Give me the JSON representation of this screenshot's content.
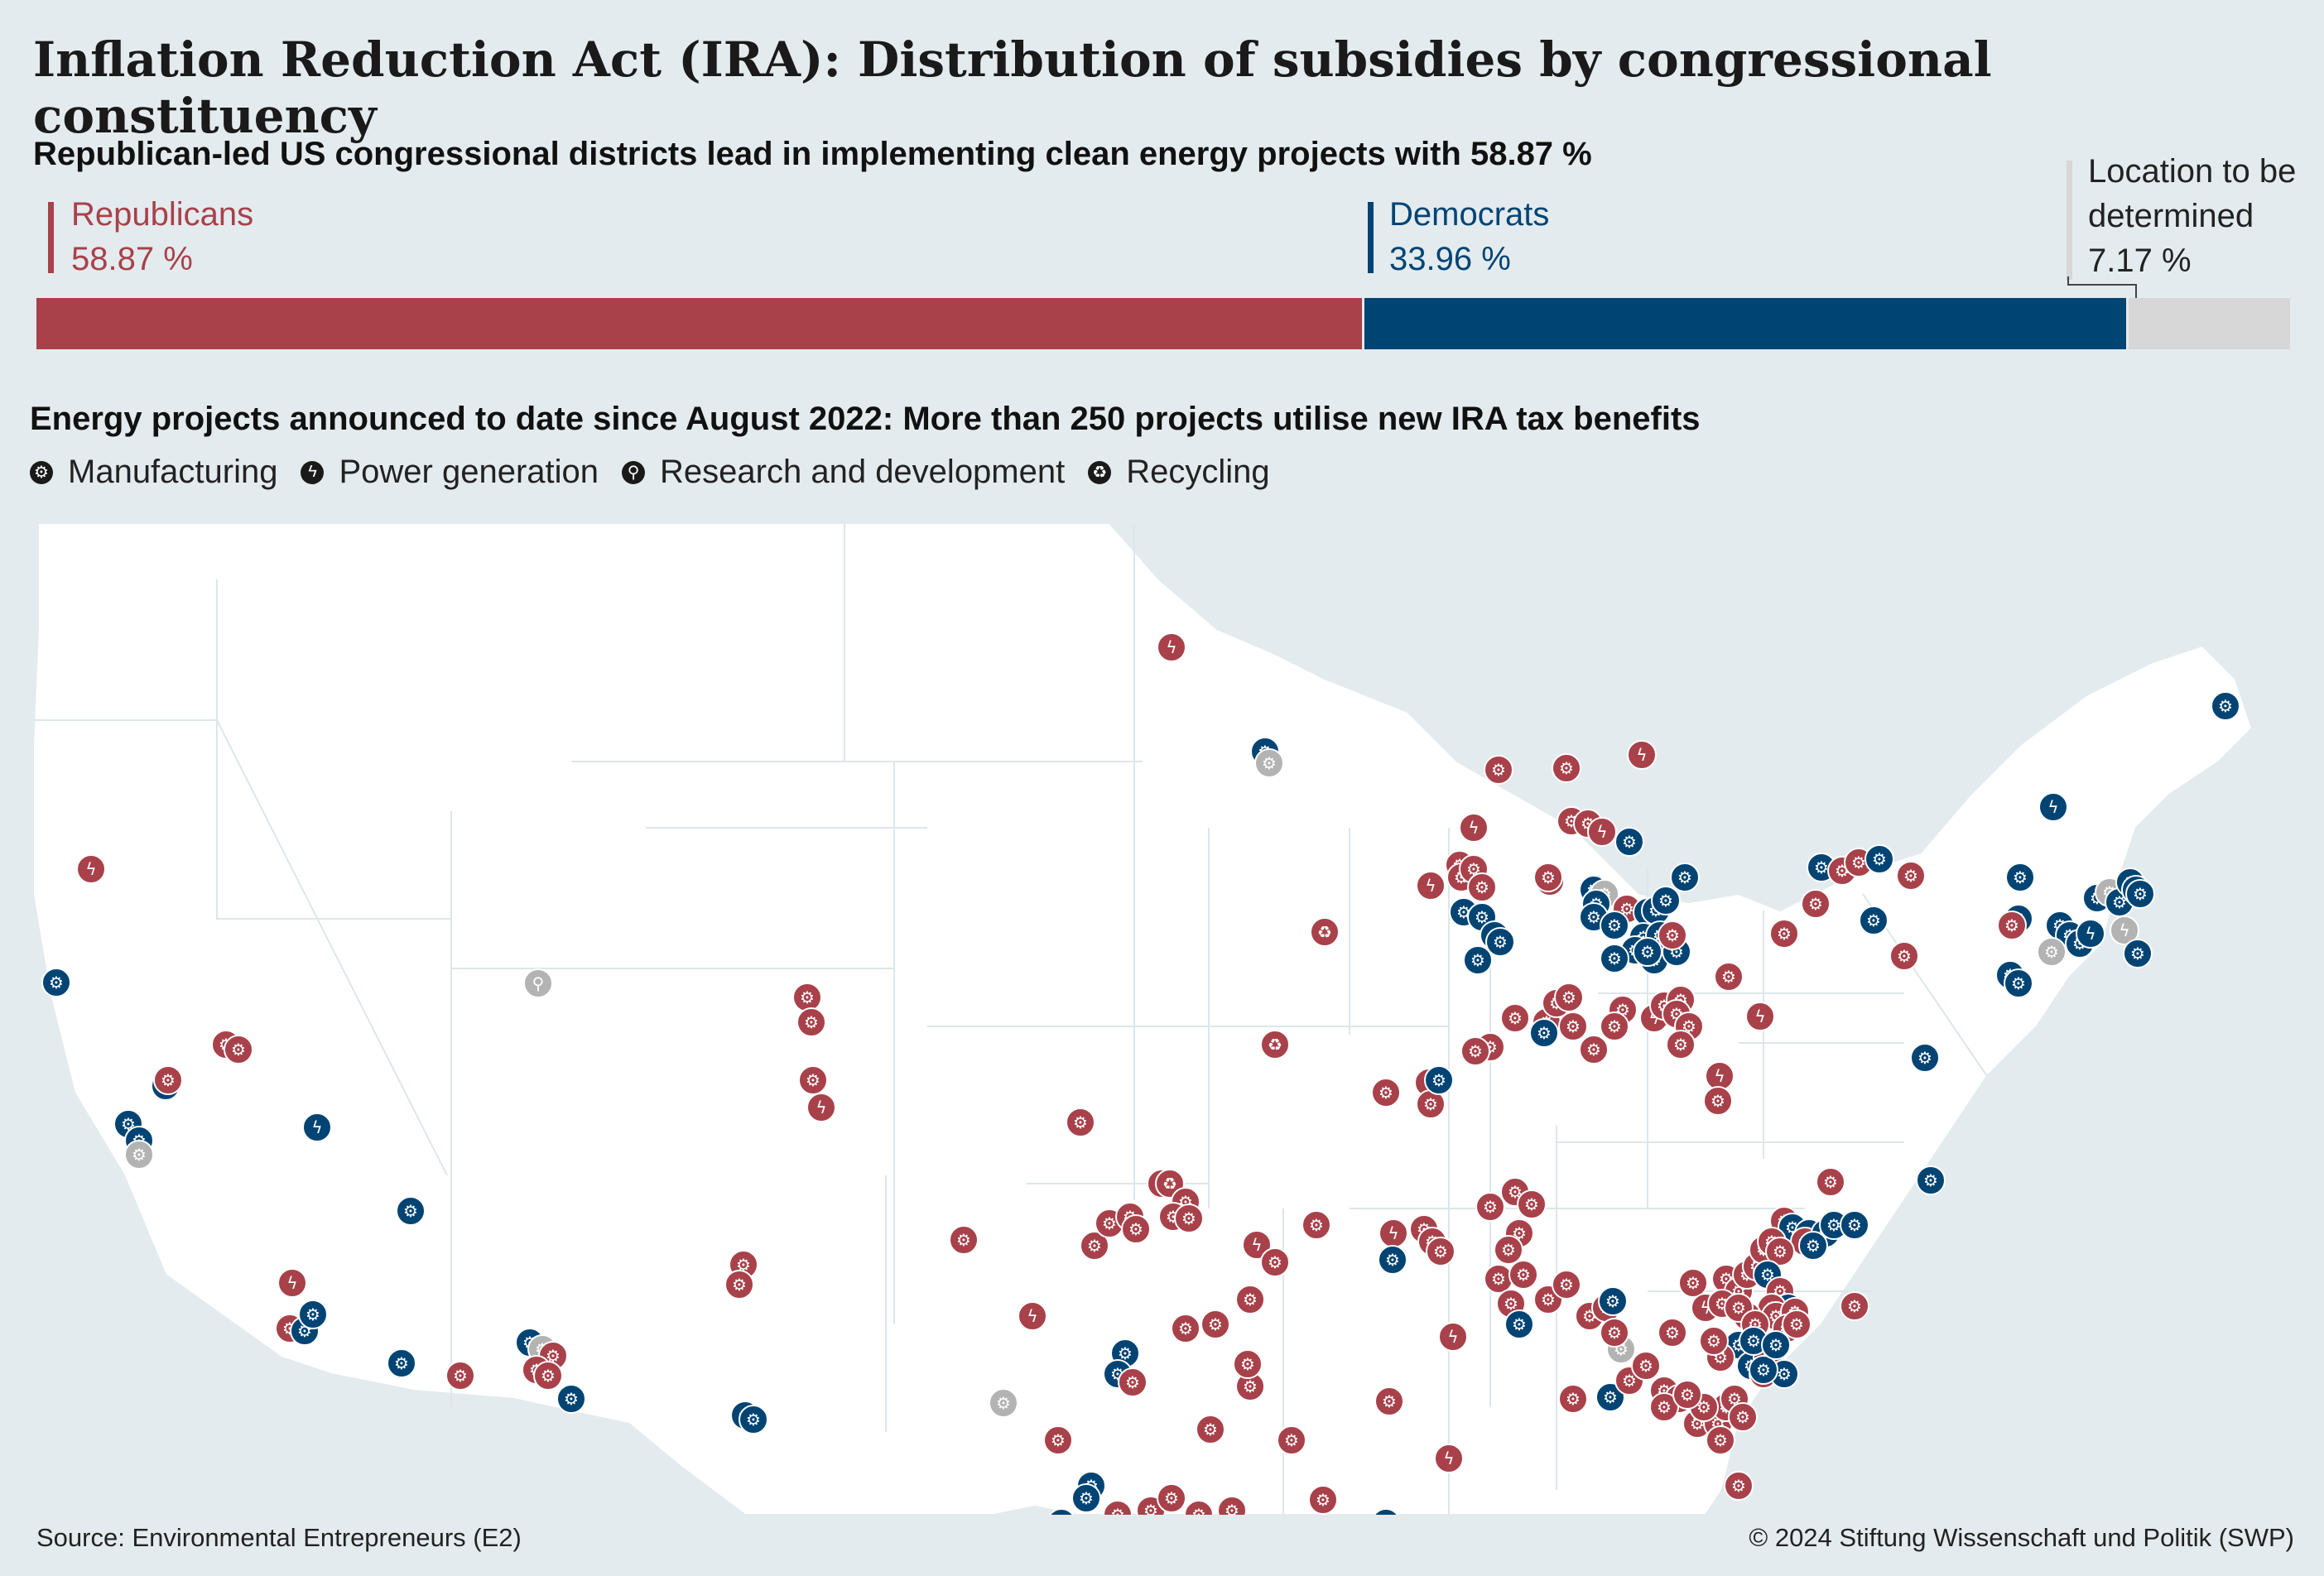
{
  "title": "Inflation Reduction Act (IRA): Distribution of subsidies by congressional constituency",
  "subtitle_share": "Republican-led US congressional districts lead in implementing clean energy projects with 58.87 %",
  "subtitle_projects": "Energy projects announced to date since August 2022: More than 250 projects utilise new IRA tax benefits",
  "shares": {
    "republicans": {
      "label": "Republicans",
      "value_text": "58.87 %",
      "value": 58.87,
      "color": "#a8414a"
    },
    "democrats": {
      "label": "Democrats",
      "value_text": "33.96 %",
      "value": 33.96,
      "color": "#004474"
    },
    "undetermined": {
      "label_line1": "Location to be",
      "label_line2": "determined",
      "value_text": "7.17 %",
      "value": 7.17,
      "color": "#d7d7d7"
    }
  },
  "legend": [
    {
      "label": "Manufacturing",
      "icon": "gear-icon"
    },
    {
      "label": "Power generation",
      "icon": "lightning-icon"
    },
    {
      "label": "Research and development",
      "icon": "magnifier-icon"
    },
    {
      "label": "Recycling",
      "icon": "recycling-icon"
    }
  ],
  "map_colors": {
    "land": "#ffffff",
    "border": "#dde6ea",
    "water": "#e4ebee"
  },
  "source": "Source: Environmental Entrepreneurs (E2)",
  "copyright": "© 2024 Stiftung Wissenschaft und Politik (SWP)"
}
